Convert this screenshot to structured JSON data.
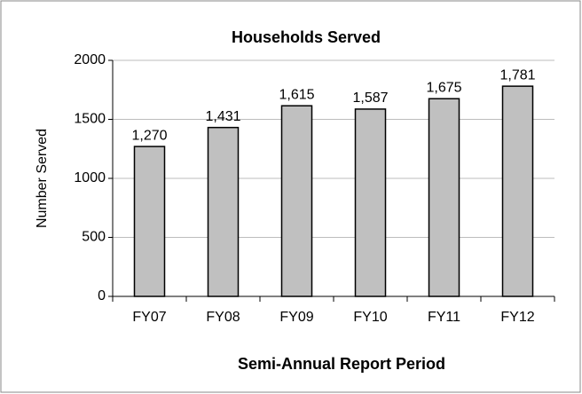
{
  "chart_data": {
    "type": "bar",
    "title": "Households Served",
    "x_label": "Semi-Annual Report Period",
    "y_label": "Number Served",
    "categories": [
      "FY07",
      "FY08",
      "FY09",
      "FY10",
      "FY11",
      "FY12"
    ],
    "values": [
      1270,
      1431,
      1615,
      1587,
      1675,
      1781
    ],
    "value_labels": [
      "1,270",
      "1,431",
      "1,615",
      "1,587",
      "1,675",
      "1,781"
    ],
    "color": "#c0c0c0",
    "ylim": [
      0,
      2000
    ],
    "yticks": [
      0,
      500,
      1000,
      1500,
      2000
    ],
    "grid": true
  }
}
